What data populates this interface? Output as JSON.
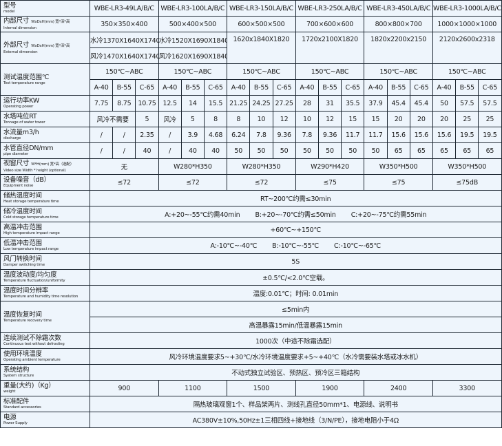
{
  "header": {
    "zh": "型号",
    "en": "model",
    "models": [
      "WBE-LR3-49LA/B/C",
      "WBE-LR3-100LA/B/C",
      "WBE-LR3-150LA/B/C",
      "WBE-LR3-250LA/B/C",
      "WBE-LR3-450LA/B/C",
      "WBE-LR3-1000LA/B/C"
    ]
  },
  "internal": {
    "zh": "内部尺寸",
    "note": "WxDxH(mm) 宽*深*高",
    "en": "Internal dimension",
    "values": [
      "350×350×400",
      "500×400×500",
      "600×500×500",
      "700×600×600",
      "800×800×700",
      "1000×1000×1000"
    ]
  },
  "external": {
    "zh": "外部尺寸",
    "note": "WxDxH(mm) 宽*深*高",
    "en": "External dimension",
    "water": [
      "水冷1370X1640X1740",
      "水冷1520X1690X1840"
    ],
    "air": [
      "风冷1470X1640X1740",
      "风冷1620X1690X1840"
    ],
    "single": [
      "1620x1840X1820",
      "1720x2100X1820",
      "1820x2200x2150",
      "2120x2600x2318"
    ]
  },
  "test_range": {
    "zh": "测试温度范围℃",
    "en": "Test temperature range",
    "values": [
      "150℃~ABC",
      "150℃~ABC",
      "150℃~ABC",
      "150℃~ABC",
      "150℃~ABC",
      "150℃~ABC"
    ],
    "sub": [
      "A-40",
      "B-55",
      "C-65",
      "A-40",
      "B-55",
      "C-65",
      "A-40",
      "B-55",
      "C-65",
      "A-40",
      "B-55",
      "C-65",
      "A-40",
      "B-55",
      "C-65",
      "A-40",
      "B-55",
      "C-65"
    ]
  },
  "power": {
    "zh": "运行功率KW",
    "en": "Operating power",
    "values": [
      "7.75",
      "8.75",
      "10.75",
      "12.5",
      "14",
      "15.5",
      "21.25",
      "24.25",
      "27.25",
      "28",
      "31",
      "35.5",
      "37.9",
      "45.4",
      "45.4",
      "50",
      "57.5",
      "57.5"
    ]
  },
  "tower": {
    "zh": "水塔吨位RT",
    "en": "Tonnage of water tower",
    "values": [
      "风冷不需要",
      "5",
      "风冷",
      "5",
      "8",
      "8",
      "10",
      "12",
      "10",
      "12",
      "15",
      "15",
      "20",
      "20",
      "20",
      "25",
      "25"
    ]
  },
  "discharge": {
    "zh": "水流量m3/h",
    "en": "discharge",
    "values": [
      "/",
      "/",
      "2.35",
      "/",
      "3.9",
      "4.68",
      "6.24",
      "7.8",
      "9.36",
      "7.8",
      "9.36",
      "11.7",
      "11.7",
      "15.6",
      "15.6",
      "15.6",
      "19.5",
      "19.5"
    ]
  },
  "pipe": {
    "zh": "水管直径DN/mm",
    "en": "pipe diameter",
    "values": [
      "/",
      "/",
      "40",
      "/",
      "40",
      "40",
      "50",
      "50",
      "50",
      "50",
      "50",
      "50",
      "50",
      "65",
      "65",
      "65",
      "65",
      "65"
    ]
  },
  "video": {
    "zh": "视窗尺寸",
    "note": "W*H(mm) 宽*高（选配）",
    "en": "Video size   Width * height (optional)",
    "values": [
      "无",
      "W280*H350",
      "W280*H350",
      "W290*H420",
      "W350*H500",
      "W350*H500"
    ]
  },
  "noise": {
    "zh": "设备噪音（dB）",
    "en": "Equipment noise",
    "values": [
      "≤72",
      "≤72",
      "≤72",
      "≤75",
      "≤75",
      "≤75dB"
    ]
  },
  "heat": {
    "zh": "储热温度时间",
    "en": "Heat storage temperature time",
    "value": "RT~200℃约需≤30min"
  },
  "cold": {
    "zh": "储冷温度时间",
    "en": "Cold storage temperature time",
    "parts": [
      "A:+20~-55℃约需40min",
      "B:+20~-70℃约需≤50min",
      "C:+20~-75℃约需55min"
    ]
  },
  "high": {
    "zh": "高温冲击范围",
    "en": "High temperature impact range",
    "value": "+60℃~+150℃"
  },
  "low": {
    "zh": "低温冲击范围",
    "en": "Low temperature impact range",
    "parts": [
      "A:-10℃~-40℃",
      "B:-10℃~-55℃",
      "C:-10℃~-65℃"
    ]
  },
  "damper": {
    "zh": "风门转换时间",
    "en": "Damper switching time",
    "value": "5S"
  },
  "fluct": {
    "zh": "温度波动度/均匀度",
    "en": "Temperature fluctuation/uniformity",
    "value": "±0.5℃/<2.0℃空载。"
  },
  "resolution": {
    "zh": "温度时间分辨率",
    "en": "Temperature and humidity time resolution",
    "value": "温度:0.01℃；时间: 0.01min"
  },
  "recovery": {
    "zh": "温度恢复时间",
    "en": "Temperature recovery time",
    "value": "≤5min内",
    "value2": "高温暴露15min/低温暴露15min"
  },
  "continuous": {
    "zh": "连续测试不除霜次数",
    "en": "Continuous test without defrosting",
    "value": "1000次（中途不除霜选配）"
  },
  "ambient": {
    "zh": "使用环境温度",
    "en": "Operating ambient temperature",
    "value": "风冷环境温度要求5~+30℃/水冷环境温度要求+5~+40℃（水冷需要装水塔或冰水机）"
  },
  "structure": {
    "zh": "系统结构",
    "en": "System structure",
    "value": "不动式独立试验区、预热区、预冷区三箱结构"
  },
  "weight": {
    "zh": "重量(大约)（Kg）",
    "en": "weight",
    "values": [
      "900",
      "1100",
      "1500",
      "1900",
      "2400",
      "3300"
    ]
  },
  "accessories": {
    "zh": "标准配件",
    "en": "Standard accessories",
    "value": "隔热玻璃观窗1个、样品架两片、测线孔直径50mm*1、电源线、说明书"
  },
  "supply": {
    "zh": "电源",
    "en": "Power Supply",
    "value": "AC380V±10%,50Hz±1三相四线+接地线（3/N/PE），接地电阻小于4Ω"
  }
}
